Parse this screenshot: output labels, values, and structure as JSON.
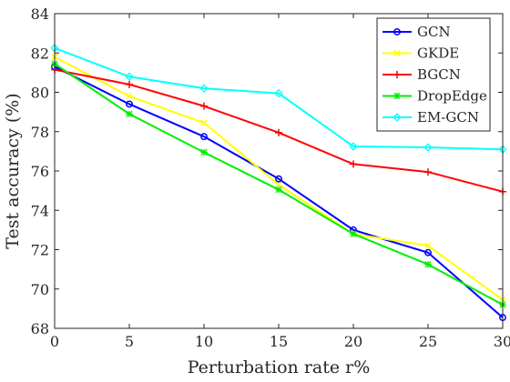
{
  "chart_data": {
    "type": "line",
    "xlabel": "Perturbation rate r%",
    "ylabel": "Test accuracy (%)",
    "x": [
      0,
      5,
      10,
      15,
      20,
      25,
      30
    ],
    "xlim": [
      0,
      30
    ],
    "ylim": [
      68,
      84
    ],
    "xticks": [
      0,
      5,
      10,
      15,
      20,
      25,
      30
    ],
    "yticks": [
      68,
      70,
      72,
      74,
      76,
      78,
      80,
      82,
      84
    ],
    "grid": false,
    "legend_position": "top-right",
    "series": [
      {
        "name": "GCN",
        "color": "#0000ff",
        "marker": "circle",
        "values": [
          81.3,
          79.4,
          77.75,
          75.6,
          73.0,
          71.85,
          68.55
        ]
      },
      {
        "name": "GKDE",
        "color": "#ffff00",
        "marker": "x",
        "values": [
          81.8,
          79.8,
          78.45,
          75.3,
          72.8,
          72.2,
          69.45
        ]
      },
      {
        "name": "BGCN",
        "color": "#ff0000",
        "marker": "plus",
        "values": [
          81.15,
          80.4,
          79.3,
          77.95,
          76.35,
          75.95,
          74.95
        ]
      },
      {
        "name": "DropEdge",
        "color": "#00ee00",
        "marker": "asterisk",
        "values": [
          81.45,
          78.9,
          76.95,
          75.05,
          72.8,
          71.25,
          69.2
        ]
      },
      {
        "name": "EM-GCN",
        "color": "#00ffff",
        "marker": "diamond",
        "values": [
          82.25,
          80.8,
          80.2,
          79.95,
          77.25,
          77.2,
          77.1
        ]
      }
    ]
  }
}
